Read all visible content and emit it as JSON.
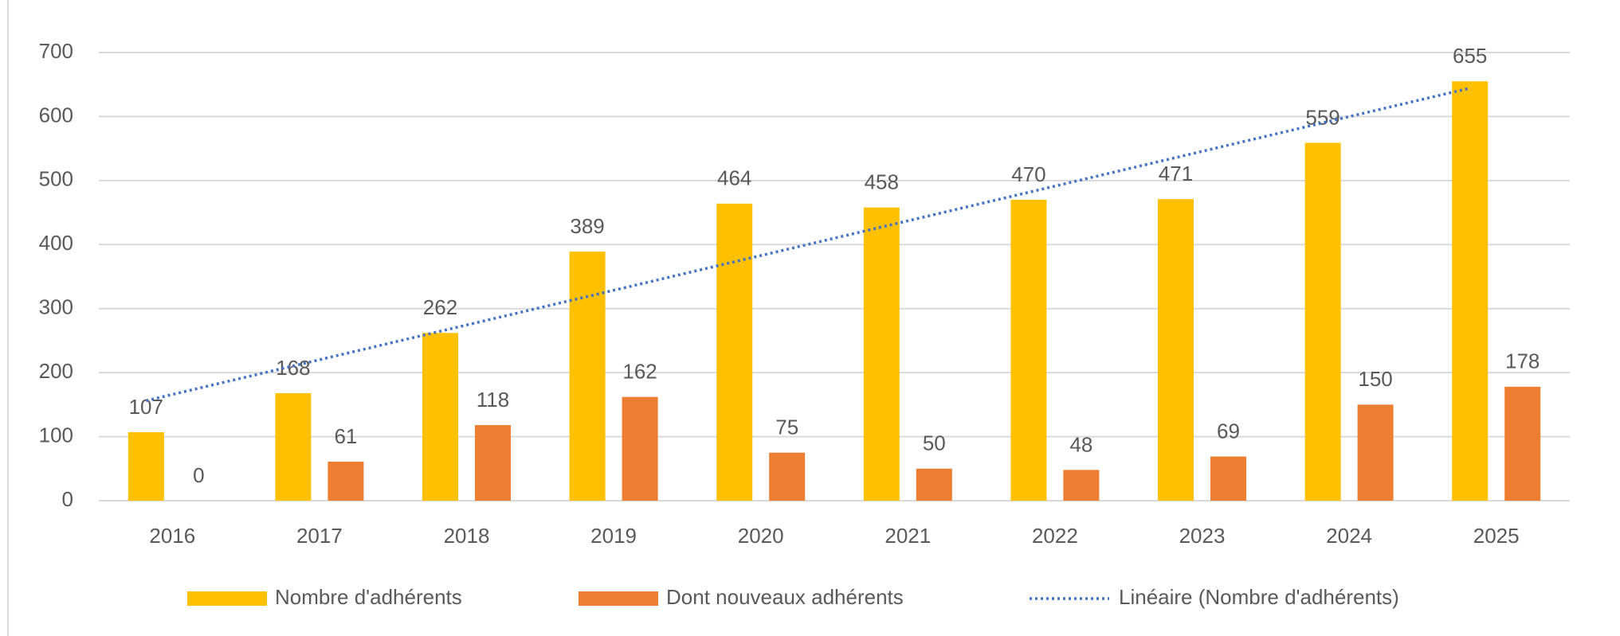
{
  "chart_data": {
    "type": "bar",
    "categories": [
      "2016",
      "2017",
      "2018",
      "2019",
      "2020",
      "2021",
      "2022",
      "2023",
      "2024",
      "2025"
    ],
    "series": [
      {
        "name": "Nombre d'adhérents",
        "color": "#ffc000",
        "values": [
          107,
          168,
          262,
          389,
          464,
          458,
          470,
          471,
          559,
          655
        ]
      },
      {
        "name": "Dont nouveaux adhérents",
        "color": "#ed7d31",
        "values": [
          0,
          61,
          118,
          162,
          75,
          50,
          48,
          69,
          150,
          178
        ]
      }
    ],
    "trendline": {
      "name": "Linéaire (Nombre d'adhérents)",
      "color": "#4472c4",
      "style": "dotted"
    },
    "ylim": [
      0,
      700
    ],
    "yticks": [
      0,
      100,
      200,
      300,
      400,
      500,
      600,
      700
    ],
    "grid": true,
    "legend": "bottom"
  }
}
